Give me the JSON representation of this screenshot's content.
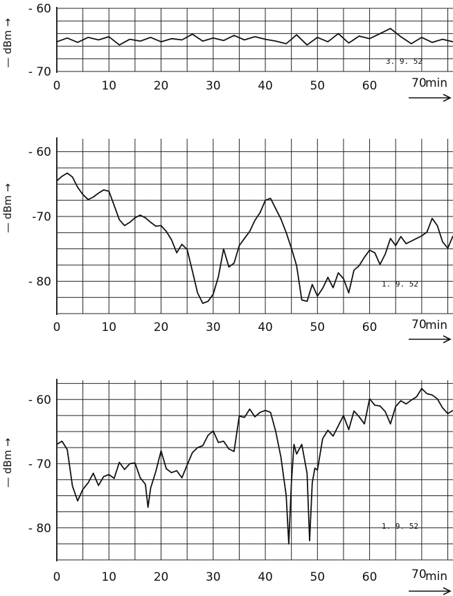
{
  "chart_data": [
    {
      "type": "line",
      "ylabel": "— dBm →",
      "xunit": "min",
      "date_label": "3. 9. 52",
      "xlim": [
        0,
        76
      ],
      "ylim": [
        -70,
        -60
      ],
      "x_ticks": [
        0,
        10,
        20,
        30,
        40,
        50,
        60,
        70
      ],
      "y_ticks": [
        -60,
        -70
      ],
      "tick_labels": [
        "0",
        "10",
        "20",
        "30",
        "40",
        "50",
        "60",
        "70"
      ],
      "ytick_labels": [
        "- 60",
        "- 70"
      ],
      "series": [
        {
          "x": [
            0,
            2,
            4,
            6,
            8,
            10,
            12,
            14,
            16,
            18,
            20,
            22,
            24,
            26,
            28,
            30,
            32,
            34,
            36,
            38,
            40,
            42,
            44,
            46,
            48,
            50,
            52,
            54,
            56,
            58,
            60,
            62,
            64,
            66,
            68,
            70,
            72,
            74,
            76
          ],
          "y": [
            -65.3,
            -64.7,
            -65.4,
            -64.6,
            -65.0,
            -64.5,
            -65.8,
            -64.9,
            -65.2,
            -64.6,
            -65.3,
            -64.8,
            -65.0,
            -64.1,
            -65.2,
            -64.7,
            -65.1,
            -64.3,
            -65.0,
            -64.5,
            -64.9,
            -65.2,
            -65.6,
            -64.2,
            -65.8,
            -64.6,
            -65.3,
            -64.0,
            -65.5,
            -64.4,
            -64.8,
            -64.0,
            -63.2,
            -64.5,
            -65.6,
            -64.6,
            -65.4,
            -64.9,
            -65.3
          ]
        }
      ]
    },
    {
      "type": "line",
      "ylabel": "— dBm →",
      "xunit": "min",
      "date_label": "1. 9. 52",
      "xlim": [
        0,
        76
      ],
      "ylim": [
        -85,
        -58
      ],
      "x_ticks": [
        0,
        10,
        20,
        30,
        40,
        50,
        60,
        70
      ],
      "y_ticks": [
        -60,
        -70,
        -80
      ],
      "tick_labels": [
        "0",
        "10",
        "20",
        "30",
        "40",
        "50",
        "60",
        "70"
      ],
      "ytick_labels": [
        "- 60",
        "-70",
        "- 80"
      ],
      "series": [
        {
          "x": [
            0,
            1,
            2,
            3,
            4,
            5,
            6,
            7,
            8,
            9,
            10,
            11,
            12,
            13,
            14,
            15,
            16,
            17,
            18,
            19,
            20,
            21,
            22,
            23,
            24,
            25,
            26,
            27,
            28,
            29,
            30,
            31,
            32,
            33,
            34,
            35,
            36,
            37,
            38,
            39,
            40,
            41,
            42,
            43,
            44,
            45,
            46,
            47,
            48,
            49,
            50,
            51,
            52,
            53,
            54,
            55,
            56,
            57,
            58,
            59,
            60,
            61,
            62,
            63,
            64,
            65,
            66,
            67,
            68,
            69,
            70,
            71,
            72,
            73,
            74,
            75,
            76
          ],
          "y": [
            -64.5,
            -63.8,
            -63.3,
            -63.9,
            -65.5,
            -66.6,
            -67.4,
            -67.0,
            -66.4,
            -65.9,
            -66.1,
            -68.3,
            -70.5,
            -71.4,
            -70.9,
            -70.2,
            -69.8,
            -70.2,
            -70.9,
            -71.5,
            -71.4,
            -72.3,
            -73.6,
            -75.6,
            -74.3,
            -75.1,
            -78.4,
            -81.8,
            -83.4,
            -83.1,
            -82.0,
            -79.3,
            -75.0,
            -77.8,
            -77.2,
            -74.5,
            -73.4,
            -72.3,
            -70.6,
            -69.4,
            -67.5,
            -67.2,
            -68.8,
            -70.4,
            -72.5,
            -74.9,
            -77.6,
            -82.9,
            -83.1,
            -80.5,
            -82.3,
            -81.1,
            -79.4,
            -81.0,
            -78.7,
            -79.6,
            -81.8,
            -78.3,
            -77.6,
            -76.3,
            -75.2,
            -75.6,
            -77.4,
            -75.8,
            -73.4,
            -74.5,
            -73.1,
            -74.2,
            -73.8,
            -73.4,
            -73.0,
            -72.4,
            -70.3,
            -71.4,
            -73.9,
            -74.9,
            -73.0
          ]
        }
      ]
    },
    {
      "type": "line",
      "ylabel": "— dBm →",
      "xunit": "min",
      "date_label": "1. 9. 52",
      "xlim": [
        0,
        76
      ],
      "ylim": [
        -85,
        -57
      ],
      "x_ticks": [
        0,
        10,
        20,
        30,
        40,
        50,
        60,
        70
      ],
      "y_ticks": [
        -60,
        -70,
        -80
      ],
      "tick_labels": [
        "0",
        "10",
        "20",
        "30",
        "40",
        "50",
        "60",
        "70"
      ],
      "ytick_labels": [
        "- 60",
        "- 70",
        "- 80"
      ],
      "series": [
        {
          "x": [
            0,
            1,
            2,
            3,
            4,
            5,
            6,
            7,
            8,
            9,
            10,
            11,
            12,
            13,
            14,
            15,
            16,
            17,
            17.5,
            18,
            19,
            20,
            21,
            22,
            23,
            24,
            25,
            26,
            27,
            28,
            29,
            30,
            31,
            32,
            33,
            34,
            35,
            36,
            37,
            38,
            39,
            40,
            41,
            42,
            43,
            44,
            44.5,
            45,
            45.5,
            46,
            47,
            48,
            48.5,
            49,
            49.5,
            50,
            51,
            52,
            53,
            54,
            55,
            56,
            57,
            58,
            59,
            60,
            61,
            62,
            63,
            64,
            65,
            66,
            67,
            68,
            69,
            70,
            71,
            72,
            73,
            74,
            75,
            76
          ],
          "y": [
            -67.0,
            -66.5,
            -67.8,
            -73.5,
            -75.8,
            -74.0,
            -73.0,
            -71.5,
            -73.4,
            -72.0,
            -71.7,
            -72.3,
            -69.8,
            -70.9,
            -70.0,
            -69.9,
            -72.2,
            -73.2,
            -76.8,
            -73.8,
            -71.2,
            -68.0,
            -70.8,
            -71.4,
            -71.1,
            -72.2,
            -70.2,
            -68.3,
            -67.5,
            -67.2,
            -65.6,
            -64.9,
            -66.7,
            -66.5,
            -67.7,
            -68.1,
            -62.6,
            -62.8,
            -61.5,
            -62.7,
            -62.0,
            -61.7,
            -62.0,
            -65.0,
            -69.0,
            -75.0,
            -82.5,
            -73.0,
            -67.0,
            -68.5,
            -67.0,
            -71.5,
            -82.0,
            -73.0,
            -70.7,
            -71.0,
            -66.1,
            -64.8,
            -65.7,
            -64.1,
            -62.5,
            -64.7,
            -61.8,
            -62.7,
            -63.8,
            -59.9,
            -60.9,
            -61.0,
            -61.9,
            -63.8,
            -61.1,
            -60.2,
            -60.7,
            -60.1,
            -59.6,
            -58.3,
            -59.1,
            -59.3,
            -59.9,
            -61.3,
            -62.2,
            -61.7
          ]
        }
      ]
    }
  ]
}
